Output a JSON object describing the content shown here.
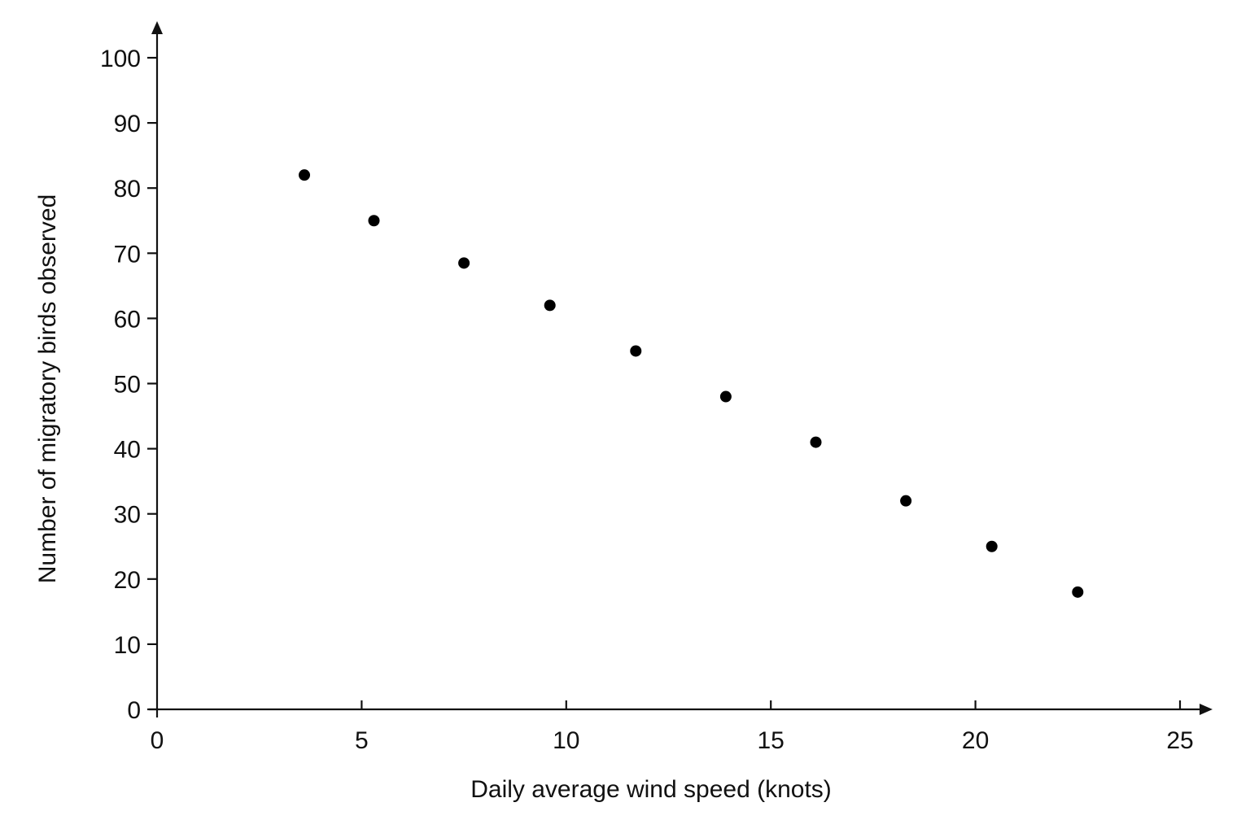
{
  "chart_data": {
    "type": "scatter",
    "title": "",
    "xlabel": "Daily average wind speed (knots)",
    "ylabel": "Number of migratory birds observed",
    "xlim": [
      0,
      25
    ],
    "ylim": [
      0,
      100
    ],
    "x_ticks": [
      0,
      5,
      10,
      15,
      20,
      25
    ],
    "x_tick_labels": [
      "0",
      "5",
      "10",
      "15",
      "20",
      "25"
    ],
    "y_ticks": [
      0,
      10,
      20,
      30,
      40,
      50,
      60,
      70,
      80,
      90,
      100
    ],
    "y_tick_labels": [
      "0",
      "10",
      "20",
      "30",
      "40",
      "50",
      "60",
      "70",
      "80",
      "90",
      "100"
    ],
    "grid": false,
    "legend": "none",
    "point_color": "#000000",
    "axis_color": "#111111",
    "series": [
      {
        "points": [
          {
            "x": 3.6,
            "y": 82
          },
          {
            "x": 5.3,
            "y": 75
          },
          {
            "x": 7.5,
            "y": 68.5
          },
          {
            "x": 9.6,
            "y": 62
          },
          {
            "x": 11.7,
            "y": 55
          },
          {
            "x": 13.9,
            "y": 48
          },
          {
            "x": 16.1,
            "y": 41
          },
          {
            "x": 18.3,
            "y": 32
          },
          {
            "x": 20.4,
            "y": 25
          },
          {
            "x": 22.5,
            "y": 18
          }
        ]
      }
    ]
  }
}
